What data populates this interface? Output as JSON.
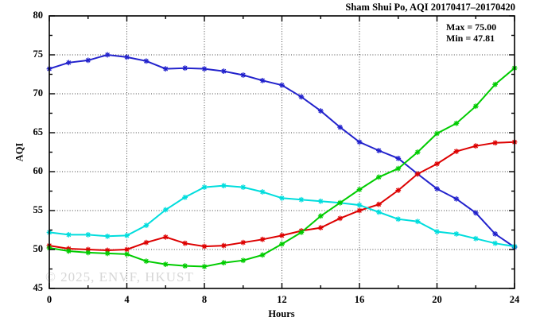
{
  "title": "Sham Shui Po, AQI 20170417–20170420",
  "annotation": {
    "max_label": "Max = 75.00",
    "min_label": "Min = 47.81"
  },
  "watermark": "© 2025, ENVF, HKUST",
  "chart_data": {
    "type": "line",
    "title": "Sham Shui Po, AQI 20170417–20170420",
    "xlabel": "Hours",
    "ylabel": "AQI",
    "xlim": [
      0,
      24
    ],
    "ylim": [
      45,
      80
    ],
    "x_ticks": [
      0,
      4,
      8,
      12,
      16,
      20,
      24
    ],
    "y_ticks": [
      45,
      50,
      55,
      60,
      65,
      70,
      75,
      80
    ],
    "x_minor_step": 2,
    "y_minor_step": 2.5,
    "grid": true,
    "legend_position": "none",
    "max": 75.0,
    "min": 47.81,
    "marker": "asterisk",
    "x": [
      0,
      1,
      2,
      3,
      4,
      5,
      6,
      7,
      8,
      9,
      10,
      11,
      12,
      13,
      14,
      15,
      16,
      17,
      18,
      19,
      20,
      21,
      22,
      23,
      24
    ],
    "series": [
      {
        "name": "blue",
        "color": "#2222cc",
        "values": [
          73.2,
          74.0,
          74.3,
          75.0,
          74.7,
          74.2,
          73.2,
          73.3,
          73.2,
          72.9,
          72.4,
          71.7,
          71.1,
          69.6,
          67.8,
          65.7,
          63.8,
          62.7,
          61.7,
          59.7,
          57.8,
          56.5,
          54.7,
          52.0,
          50.3
        ]
      },
      {
        "name": "red",
        "color": "#dd0000",
        "values": [
          50.5,
          50.1,
          50.0,
          49.9,
          50.0,
          50.9,
          51.6,
          50.8,
          50.4,
          50.5,
          50.9,
          51.3,
          51.8,
          52.4,
          52.8,
          54.0,
          55.0,
          55.8,
          57.6,
          59.7,
          61.0,
          62.6,
          63.3,
          63.7,
          63.8
        ]
      },
      {
        "name": "cyan",
        "color": "#00dddd",
        "values": [
          52.2,
          51.9,
          51.9,
          51.7,
          51.8,
          53.1,
          55.1,
          56.7,
          58.0,
          58.2,
          58.0,
          57.4,
          56.6,
          56.4,
          56.2,
          56.0,
          55.7,
          54.8,
          53.9,
          53.6,
          52.3,
          52.0,
          51.4,
          50.8,
          50.4
        ]
      },
      {
        "name": "green",
        "color": "#00cc00",
        "values": [
          50.2,
          49.8,
          49.6,
          49.5,
          49.4,
          48.5,
          48.1,
          47.9,
          47.81,
          48.3,
          48.6,
          49.3,
          50.7,
          52.2,
          54.3,
          56.0,
          57.7,
          59.3,
          60.4,
          62.5,
          64.9,
          66.2,
          68.4,
          71.2,
          73.3
        ]
      }
    ]
  }
}
